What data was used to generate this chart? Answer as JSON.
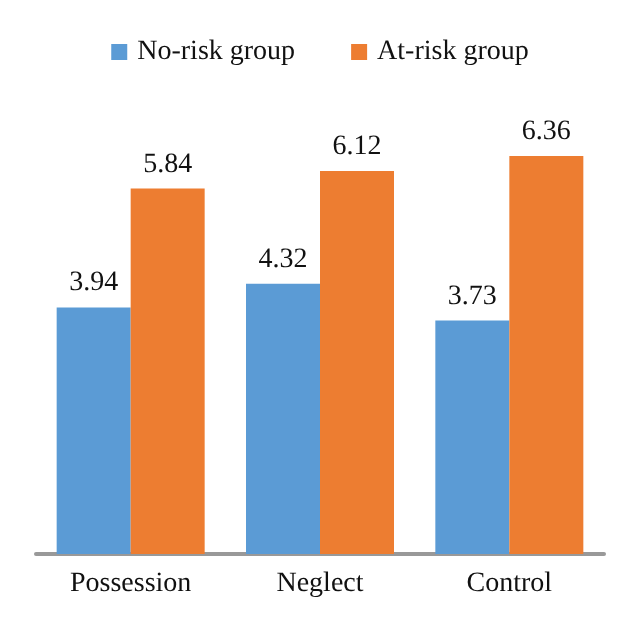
{
  "chart_data": {
    "type": "bar",
    "categories": [
      "Possession",
      "Neglect",
      "Control"
    ],
    "series": [
      {
        "name": "No-risk group",
        "color": "#5b9bd5",
        "values": [
          3.94,
          4.32,
          3.73
        ]
      },
      {
        "name": "At-risk group",
        "color": "#ed7d31",
        "values": [
          5.84,
          6.12,
          6.36
        ]
      }
    ],
    "data_labels": true,
    "legend": "top"
  }
}
